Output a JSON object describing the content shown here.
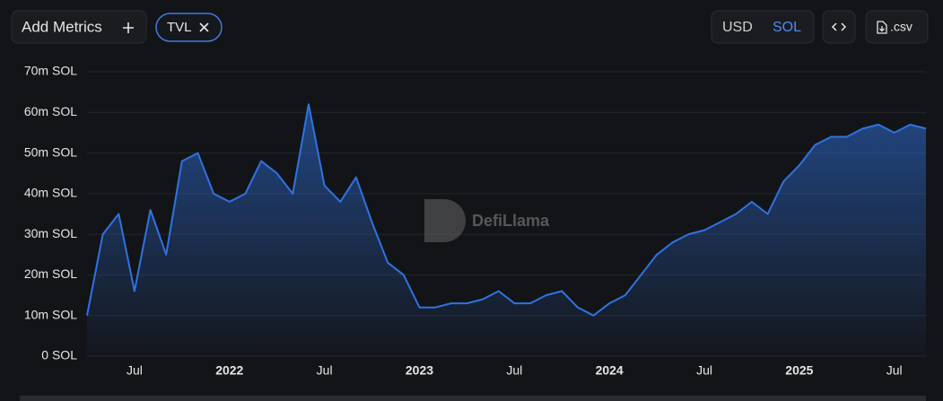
{
  "toolbar": {
    "add_metrics": "Add Metrics",
    "metric": "TVL",
    "currencies": [
      "USD",
      "SOL"
    ],
    "csv": ".csv"
  },
  "watermark": "DefiLlama",
  "chart_data": {
    "type": "area",
    "x": [
      "2021-04",
      "2021-05",
      "2021-06",
      "2021-07",
      "2021-08",
      "2021-09",
      "2021-10",
      "2021-11",
      "2021-12",
      "2022-01",
      "2022-02",
      "2022-03",
      "2022-04",
      "2022-05",
      "2022-06",
      "2022-07",
      "2022-08",
      "2022-09",
      "2022-10",
      "2022-11",
      "2022-12",
      "2023-01",
      "2023-02",
      "2023-03",
      "2023-04",
      "2023-05",
      "2023-06",
      "2023-07",
      "2023-08",
      "2023-09",
      "2023-10",
      "2023-11",
      "2023-12",
      "2024-01",
      "2024-02",
      "2024-03",
      "2024-04",
      "2024-05",
      "2024-06",
      "2024-07",
      "2024-08",
      "2024-09",
      "2024-10",
      "2024-11",
      "2024-12",
      "2025-01",
      "2025-02",
      "2025-03",
      "2025-04",
      "2025-05",
      "2025-06",
      "2025-07",
      "2025-08",
      "2025-09"
    ],
    "series": [
      {
        "name": "TVL",
        "color": "#2f73e0",
        "values": [
          10000000,
          30000000,
          35000000,
          16000000,
          36000000,
          25000000,
          48000000,
          50000000,
          40000000,
          38000000,
          40000000,
          48000000,
          45000000,
          40000000,
          62000000,
          42000000,
          38000000,
          44000000,
          33000000,
          23000000,
          20000000,
          12000000,
          12000000,
          13000000,
          13000000,
          14000000,
          16000000,
          13000000,
          13000000,
          15000000,
          16000000,
          12000000,
          10000000,
          13000000,
          15000000,
          20000000,
          25000000,
          28000000,
          30000000,
          31000000,
          33000000,
          35000000,
          38000000,
          35000000,
          43000000,
          47000000,
          52000000,
          54000000,
          54000000,
          56000000,
          57000000,
          55000000,
          57000000,
          56000000
        ]
      }
    ],
    "xlim": [
      "2021-04",
      "2025-09"
    ],
    "xticks": [
      {
        "value": "2021-07",
        "label": "Jul"
      },
      {
        "value": "2022-01",
        "label": "2022"
      },
      {
        "value": "2022-07",
        "label": "Jul"
      },
      {
        "value": "2023-01",
        "label": "2023"
      },
      {
        "value": "2023-07",
        "label": "Jul"
      },
      {
        "value": "2024-01",
        "label": "2024"
      },
      {
        "value": "2024-07",
        "label": "Jul"
      },
      {
        "value": "2025-01",
        "label": "2025"
      },
      {
        "value": "2025-07",
        "label": "Jul"
      }
    ],
    "ylim": [
      0,
      70000000
    ],
    "yticks": [
      {
        "value": 0,
        "label": "0 SOL"
      },
      {
        "value": 10000000,
        "label": "10m SOL"
      },
      {
        "value": 20000000,
        "label": "20m SOL"
      },
      {
        "value": 30000000,
        "label": "30m SOL"
      },
      {
        "value": 40000000,
        "label": "40m SOL"
      },
      {
        "value": 50000000,
        "label": "50m SOL"
      },
      {
        "value": 60000000,
        "label": "60m SOL"
      },
      {
        "value": 70000000,
        "label": "70m SOL"
      }
    ],
    "grid": true
  }
}
